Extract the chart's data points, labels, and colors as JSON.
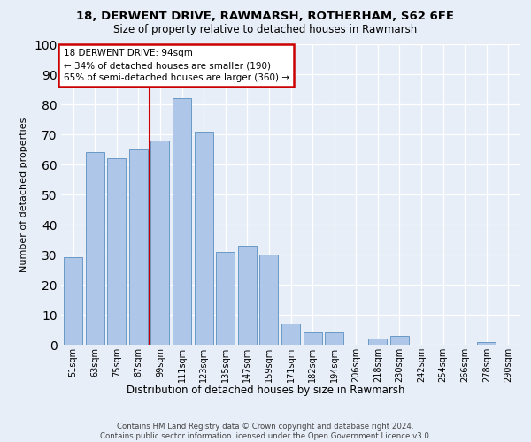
{
  "title": "18, DERWENT DRIVE, RAWMARSH, ROTHERHAM, S62 6FE",
  "subtitle": "Size of property relative to detached houses in Rawmarsh",
  "xlabel": "Distribution of detached houses by size in Rawmarsh",
  "ylabel": "Number of detached properties",
  "footer_line1": "Contains HM Land Registry data © Crown copyright and database right 2024.",
  "footer_line2": "Contains public sector information licensed under the Open Government Licence v3.0.",
  "categories": [
    "51sqm",
    "63sqm",
    "75sqm",
    "87sqm",
    "99sqm",
    "111sqm",
    "123sqm",
    "135sqm",
    "147sqm",
    "159sqm",
    "171sqm",
    "182sqm",
    "194sqm",
    "206sqm",
    "218sqm",
    "230sqm",
    "242sqm",
    "254sqm",
    "266sqm",
    "278sqm",
    "290sqm"
  ],
  "values": [
    29,
    64,
    62,
    65,
    68,
    82,
    71,
    31,
    33,
    30,
    7,
    4,
    4,
    0,
    2,
    3,
    0,
    0,
    0,
    1,
    0
  ],
  "bar_color": "#aec6e8",
  "bar_edge_color": "#5a8fc0",
  "background_color": "#e8eef8",
  "grid_color": "#ffffff",
  "vline_x": 3.5,
  "vline_color": "#cc0000",
  "annotation_title": "18 DERWENT DRIVE: 94sqm",
  "annotation_line2": "← 34% of detached houses are smaller (190)",
  "annotation_line3": "65% of semi-detached houses are larger (360) →",
  "annotation_box_color": "#cc0000",
  "annotation_fill": "#ffffff",
  "ylim": [
    0,
    100
  ],
  "yticks": [
    0,
    10,
    20,
    30,
    40,
    50,
    60,
    70,
    80,
    90,
    100
  ]
}
